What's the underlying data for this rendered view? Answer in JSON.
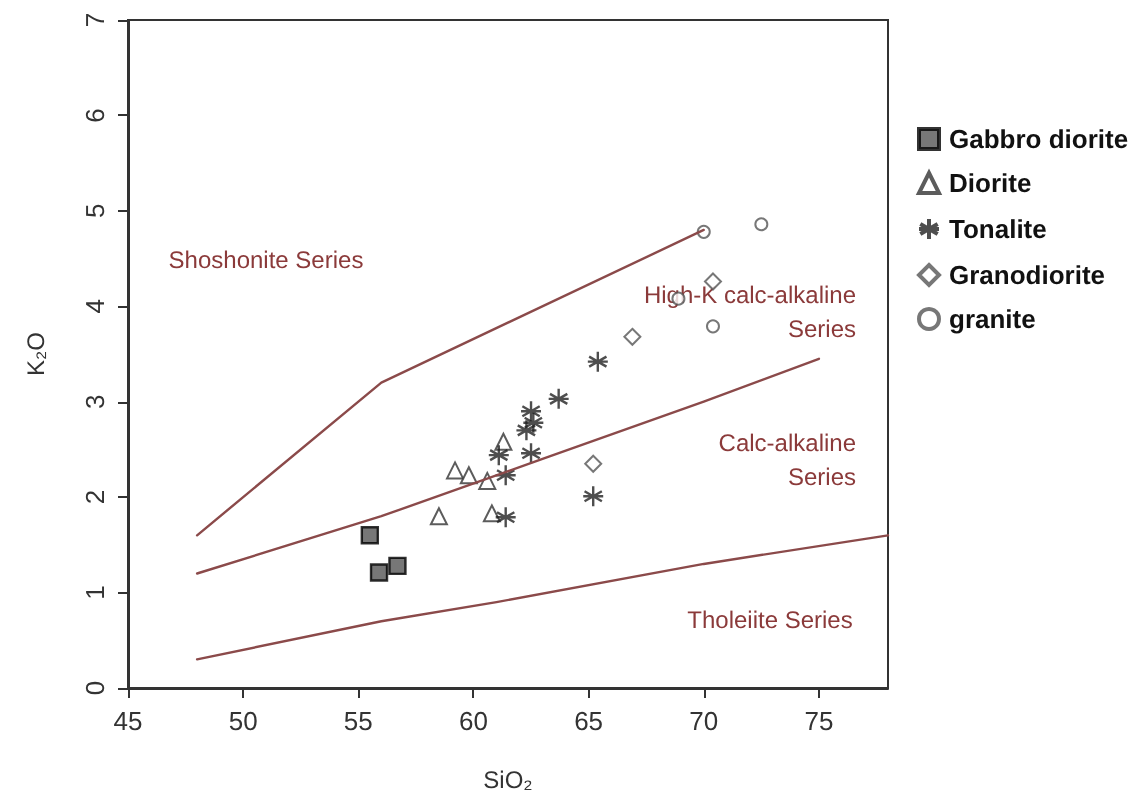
{
  "chart_data": {
    "type": "scatter",
    "xlabel": "SiO₂",
    "ylabel": "K₂O",
    "xlim": [
      45,
      78
    ],
    "xticks": [
      45,
      50,
      55,
      60,
      65,
      70,
      75
    ],
    "ylim": [
      0,
      7
    ],
    "yticks": [
      0,
      1,
      2,
      3,
      4,
      5,
      6,
      7
    ],
    "grid": false,
    "legend": "right",
    "series": [
      {
        "name": "Gabbro diorite",
        "color": "#555555",
        "marker": "square",
        "x": [
          55.5,
          55.9,
          56.7
        ],
        "values": [
          1.6,
          1.21,
          1.28
        ]
      },
      {
        "name": "Diorite",
        "color": "#333333",
        "marker": "triangle",
        "x": [
          58.5,
          59.2,
          59.8,
          60.6,
          61.3,
          60.8
        ],
        "values": [
          1.8,
          2.28,
          2.23,
          2.17,
          2.58,
          1.83
        ]
      },
      {
        "name": "Tonalite",
        "color": "#222222",
        "marker": "cross",
        "x": [
          61.4,
          61.4,
          61.1,
          62.5,
          62.3,
          62.6,
          62.5,
          63.7,
          65.4,
          65.2
        ],
        "values": [
          1.79,
          2.23,
          2.44,
          2.46,
          2.7,
          2.78,
          2.9,
          3.03,
          3.42,
          2.01
        ]
      },
      {
        "name": "Granodiorite",
        "color": "#555555",
        "marker": "diamond",
        "x": [
          65.2,
          66.9,
          70.4
        ],
        "values": [
          2.35,
          3.68,
          4.26
        ]
      },
      {
        "name": "granite",
        "color": "#555555",
        "marker": "circle",
        "x": [
          70.0,
          72.5,
          70.4,
          68.9
        ],
        "values": [
          4.78,
          4.86,
          3.79,
          4.08
        ]
      },
      {
        "type": "line",
        "color": "#8b4a4a",
        "marker": "none",
        "x": [
          48,
          56,
          70
        ],
        "values": [
          1.6,
          3.2,
          4.8
        ]
      },
      {
        "type": "line",
        "color": "#8b4a4a",
        "marker": "none",
        "x": [
          48,
          56,
          63,
          70,
          75
        ],
        "values": [
          1.2,
          1.8,
          2.4,
          3.0,
          3.45
        ]
      },
      {
        "type": "line",
        "color": "#8b4a4a",
        "marker": "none",
        "x": [
          48,
          56,
          61,
          70,
          78
        ],
        "values": [
          0.3,
          0.7,
          0.9,
          1.3,
          1.6
        ]
      }
    ],
    "annotations": [
      "Shoshonite Series",
      "High-K calc-alkaline\nSeries",
      "Calc-alkaline\nSeries",
      "Tholeiite Series"
    ]
  }
}
